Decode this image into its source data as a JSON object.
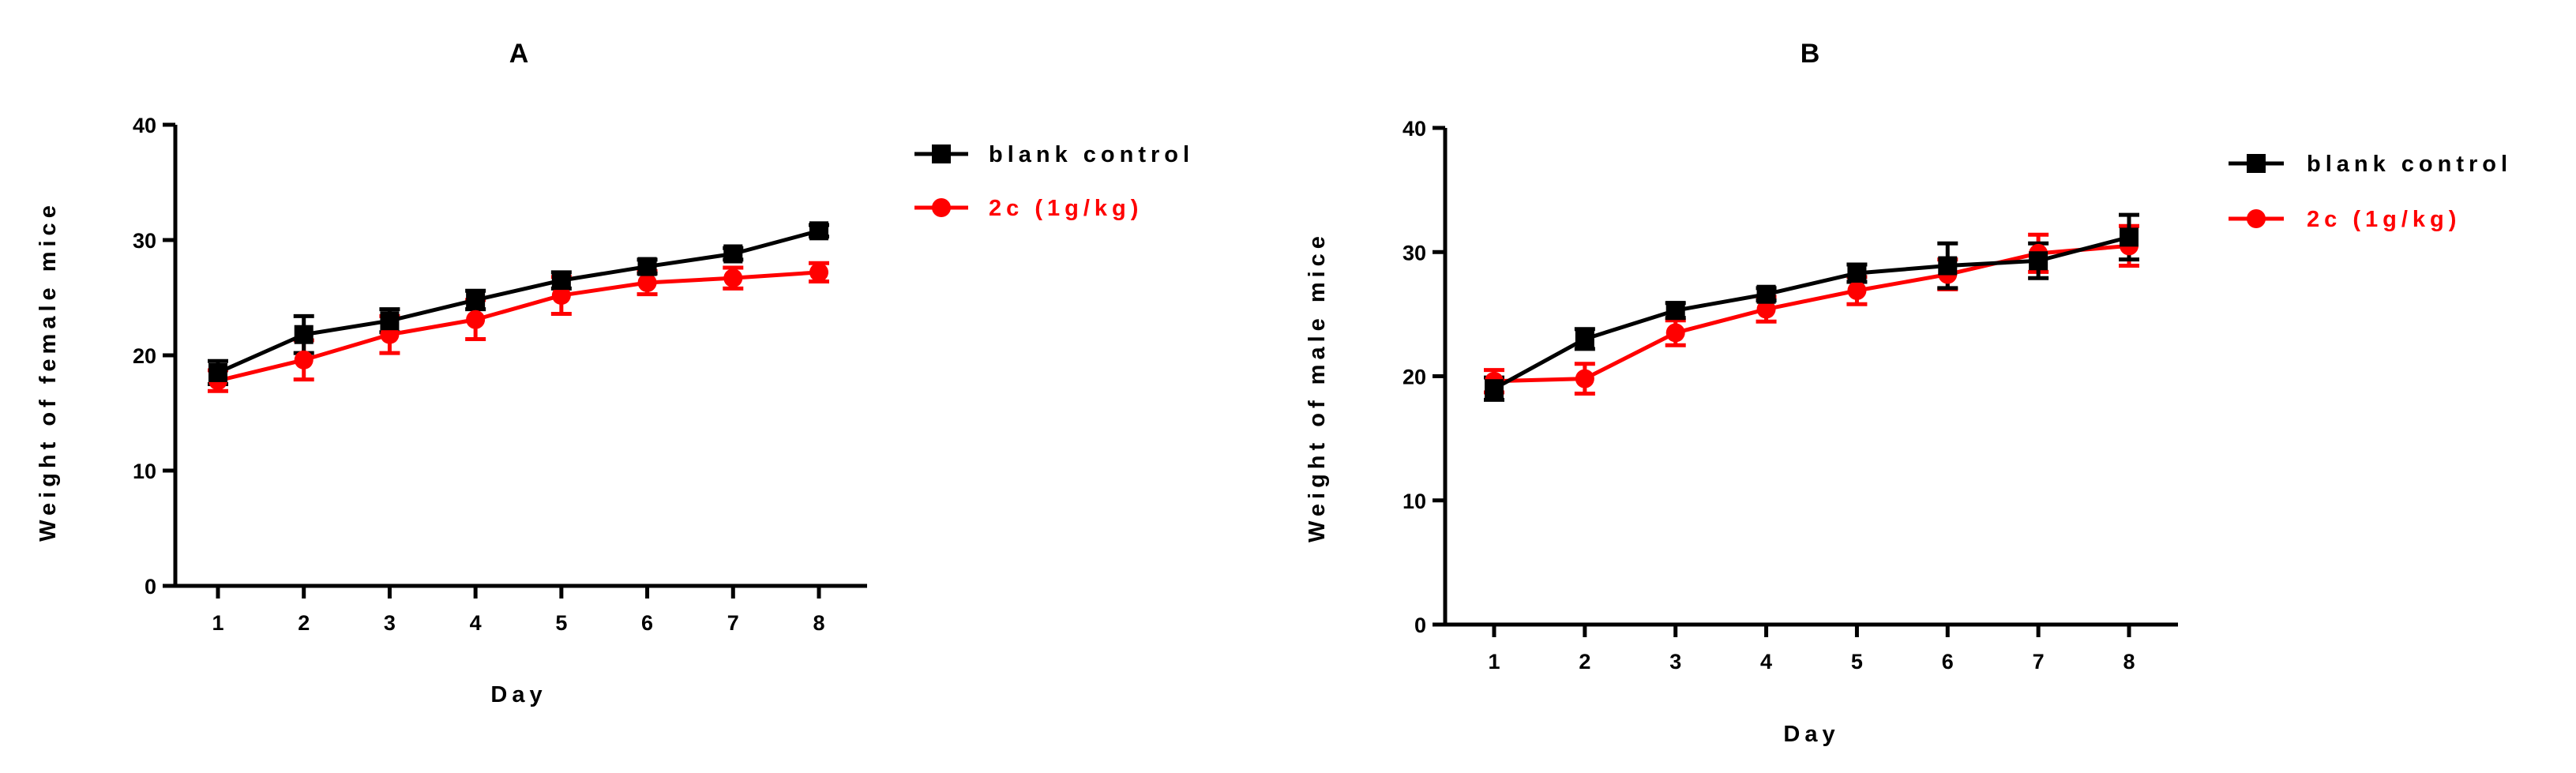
{
  "chart_data": [
    {
      "type": "line",
      "panel_label": "A",
      "xlabel": "Day",
      "ylabel": "Weight of female mice",
      "x": [
        1,
        2,
        3,
        4,
        5,
        6,
        7,
        8
      ],
      "ylim": [
        0,
        40
      ],
      "yticks": [
        0,
        10,
        20,
        30,
        40
      ],
      "grid": false,
      "legend_position": "right",
      "series": [
        {
          "name": "blank control",
          "color": "#000000",
          "marker": "square",
          "values": [
            18.5,
            21.8,
            23.0,
            24.8,
            26.5,
            27.7,
            28.8,
            30.8
          ],
          "errors": [
            1.0,
            1.6,
            1.0,
            0.8,
            0.7,
            0.6,
            0.5,
            0.5
          ]
        },
        {
          "name": "2c (1g/kg)",
          "color": "#ff0000",
          "marker": "circle",
          "values": [
            17.8,
            19.6,
            21.8,
            23.1,
            25.2,
            26.3,
            26.7,
            27.2
          ],
          "errors": [
            0.9,
            1.7,
            1.6,
            1.7,
            1.6,
            1.0,
            0.9,
            0.8
          ]
        }
      ]
    },
    {
      "type": "line",
      "panel_label": "B",
      "xlabel": "Day",
      "ylabel": "Weight of male mice",
      "x": [
        1,
        2,
        3,
        4,
        5,
        6,
        7,
        8
      ],
      "ylim": [
        0,
        40
      ],
      "yticks": [
        0,
        10,
        20,
        30,
        40
      ],
      "grid": false,
      "legend_position": "right",
      "series": [
        {
          "name": "blank control",
          "color": "#000000",
          "marker": "square",
          "values": [
            19.0,
            23.0,
            25.3,
            26.6,
            28.3,
            28.9,
            29.3,
            31.2
          ],
          "errors": [
            0.9,
            0.8,
            0.6,
            0.5,
            0.7,
            1.8,
            1.4,
            1.8
          ]
        },
        {
          "name": "2c (1g/kg)",
          "color": "#ff0000",
          "marker": "circle",
          "values": [
            19.6,
            19.8,
            23.5,
            25.4,
            26.9,
            28.2,
            29.9,
            30.5
          ],
          "errors": [
            0.9,
            1.2,
            1.0,
            1.0,
            1.1,
            1.2,
            1.5,
            1.6
          ]
        }
      ]
    }
  ]
}
